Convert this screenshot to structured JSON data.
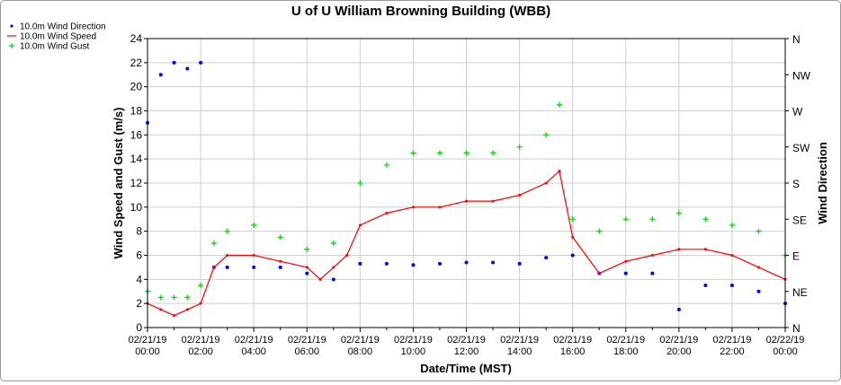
{
  "chart_data": {
    "type": "scatter",
    "title": "U of U William Browning Building (WBB)",
    "xlabel": "Date/Time (MST)",
    "ylabel": "Wind Speed and Gust (m/s)",
    "y2label": "Wind Direction",
    "ylim": [
      0,
      24
    ],
    "y_ticks": [
      "0",
      "2",
      "4",
      "6",
      "8",
      "10",
      "12",
      "14",
      "16",
      "18",
      "20",
      "22",
      "24"
    ],
    "y2_ticks": [
      "N",
      "NE",
      "E",
      "SE",
      "S",
      "SW",
      "W",
      "NW",
      "N"
    ],
    "xlim_hours": [
      0,
      24
    ],
    "x_ticks": [
      {
        "date": "02/21/19",
        "time": "00:00"
      },
      {
        "date": "02/21/19",
        "time": "02:00"
      },
      {
        "date": "02/21/19",
        "time": "04:00"
      },
      {
        "date": "02/21/19",
        "time": "06:00"
      },
      {
        "date": "02/21/19",
        "time": "08:00"
      },
      {
        "date": "02/21/19",
        "time": "10:00"
      },
      {
        "date": "02/21/19",
        "time": "12:00"
      },
      {
        "date": "02/21/19",
        "time": "14:00"
      },
      {
        "date": "02/21/19",
        "time": "16:00"
      },
      {
        "date": "02/21/19",
        "time": "18:00"
      },
      {
        "date": "02/21/19",
        "time": "20:00"
      },
      {
        "date": "02/21/19",
        "time": "22:00"
      },
      {
        "date": "02/22/19",
        "time": "00:00"
      }
    ],
    "grid": true,
    "legend_position": "top-left",
    "series": [
      {
        "name": "10.0m Wind Direction",
        "style": "dots",
        "color": "#0000ff",
        "x_hours": [
          0,
          0.5,
          1,
          1.5,
          2,
          2.5,
          3,
          4,
          5,
          6,
          7,
          8,
          9,
          10,
          11,
          12,
          13,
          14,
          15,
          16,
          17,
          18,
          19,
          20,
          21,
          22,
          23,
          24
        ],
        "values": [
          17,
          21,
          22,
          21.5,
          22,
          5,
          5,
          5,
          5,
          4.5,
          4,
          5.3,
          5.3,
          5.2,
          5.3,
          5.4,
          5.4,
          5.3,
          5.8,
          6,
          4.5,
          4.5,
          4.5,
          1.5,
          3.5,
          3.5,
          3,
          2
        ]
      },
      {
        "name": "10.0m Wind Speed",
        "style": "line",
        "color": "#ff0000",
        "x_hours": [
          0,
          0.5,
          1,
          1.5,
          2,
          2.5,
          3,
          4,
          5,
          6,
          6.5,
          7,
          7.5,
          8,
          9,
          10,
          11,
          12,
          13,
          14,
          15,
          15.5,
          16,
          17,
          18,
          19,
          20,
          21,
          22,
          23,
          24
        ],
        "values": [
          2,
          1.5,
          1,
          1.5,
          2,
          5,
          6,
          6,
          5.5,
          5,
          4,
          5,
          6,
          8.5,
          9.5,
          10,
          10,
          10.5,
          10.5,
          11,
          12,
          13,
          7.5,
          4.5,
          5.5,
          6,
          6.5,
          6.5,
          6,
          5,
          4
        ]
      },
      {
        "name": "10.0m Wind Gust",
        "style": "plus",
        "color": "#00dd00",
        "x_hours": [
          0,
          0.5,
          1,
          1.5,
          2,
          2.5,
          3,
          4,
          5,
          6,
          7,
          8,
          9,
          10,
          11,
          12,
          13,
          14,
          15,
          15.5,
          16,
          17,
          18,
          19,
          20,
          21,
          22,
          23,
          24
        ],
        "values": [
          3,
          2.5,
          2.5,
          2.5,
          3.5,
          7,
          8,
          8.5,
          7.5,
          6.5,
          7,
          12,
          13.5,
          14.5,
          14.5,
          14.5,
          14.5,
          15,
          16,
          18.5,
          9,
          8,
          9,
          9,
          9.5,
          9,
          8.5,
          8,
          6
        ]
      }
    ]
  }
}
